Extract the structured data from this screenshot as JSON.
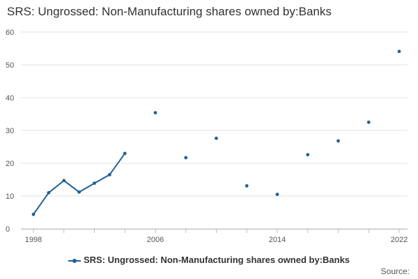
{
  "chart_data": {
    "type": "line",
    "title": "SRS: Ungrossed: Non-Manufacturing shares owned by:Banks",
    "xlabel": "",
    "ylabel": "",
    "x": [
      1998,
      1999,
      2000,
      2001,
      2002,
      2003,
      2004,
      2006,
      2008,
      2010,
      2012,
      2014,
      2016,
      2018,
      2020,
      2022
    ],
    "series": [
      {
        "name": "SRS: Ungrossed: Non-Manufacturing shares owned by:Banks",
        "color": "#206095",
        "values": [
          4.4,
          11.0,
          14.7,
          11.2,
          13.9,
          16.5,
          23.0,
          35.4,
          21.7,
          27.6,
          13.1,
          10.5,
          22.6,
          26.8,
          32.5,
          54.1
        ]
      }
    ],
    "xlim": [
      1998,
      2022
    ],
    "ylim": [
      0,
      60
    ],
    "yticks": [
      0,
      10,
      20,
      30,
      40,
      50,
      60
    ],
    "xtick_labels": [
      "1998",
      "2006",
      "2014",
      "2022"
    ],
    "grid": true,
    "legend": "bottom"
  },
  "source_label": "Source:"
}
